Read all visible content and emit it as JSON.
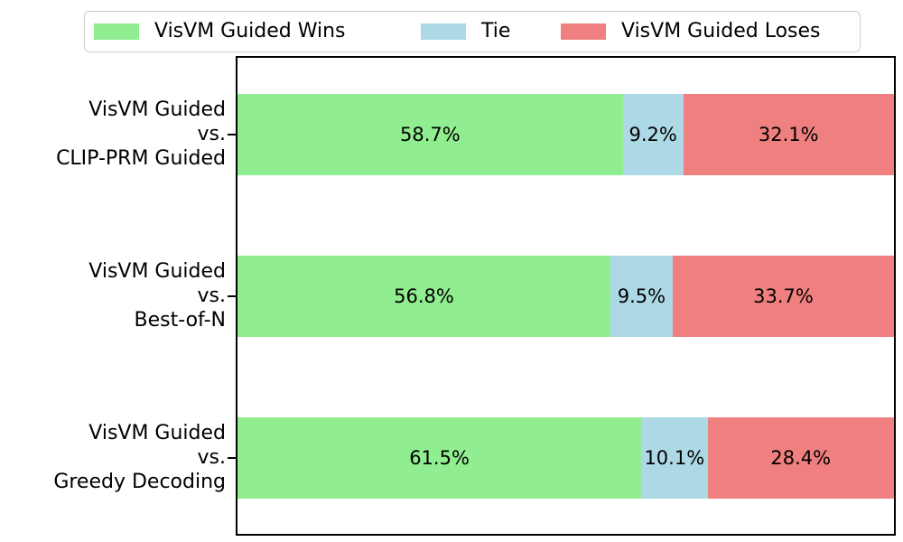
{
  "chart_data": {
    "type": "bar",
    "orientation": "horizontal_stacked",
    "title": "",
    "xlabel": "",
    "ylabel": "",
    "xlim": [
      0,
      100
    ],
    "grid": false,
    "legend_position": "top",
    "value_suffix": "%",
    "categories": [
      "VisVM Guided vs. CLIP-PRM Guided",
      "VisVM Guided vs. Best-of-N",
      "VisVM Guided vs. Greedy Decoding"
    ],
    "series": [
      {
        "name": "VisVM Guided Wins",
        "color": "#90EE90",
        "values": [
          58.7,
          56.8,
          61.5
        ]
      },
      {
        "name": "Tie",
        "color": "#ADD8E6",
        "values": [
          9.2,
          9.5,
          10.1
        ]
      },
      {
        "name": "VisVM Guided Loses",
        "color": "#F08080",
        "values": [
          32.1,
          33.7,
          28.4
        ]
      }
    ],
    "rows": [
      {
        "category_lines": [
          "VisVM Guided",
          "vs.",
          "CLIP-PRM Guided"
        ],
        "segments": [
          {
            "series": "VisVM Guided Wins",
            "value": 58.7,
            "label": "58.7%",
            "color": "#90EE90"
          },
          {
            "series": "Tie",
            "value": 9.2,
            "label": "9.2%",
            "color": "#ADD8E6"
          },
          {
            "series": "VisVM Guided Loses",
            "value": 32.1,
            "label": "32.1%",
            "color": "#F08080"
          }
        ]
      },
      {
        "category_lines": [
          "VisVM Guided",
          "vs.",
          "Best-of-N"
        ],
        "segments": [
          {
            "series": "VisVM Guided Wins",
            "value": 56.8,
            "label": "56.8%",
            "color": "#90EE90"
          },
          {
            "series": "Tie",
            "value": 9.5,
            "label": "9.5%",
            "color": "#ADD8E6"
          },
          {
            "series": "VisVM Guided Loses",
            "value": 33.7,
            "label": "33.7%",
            "color": "#F08080"
          }
        ]
      },
      {
        "category_lines": [
          "VisVM Guided",
          "vs.",
          "Greedy Decoding"
        ],
        "segments": [
          {
            "series": "VisVM Guided Wins",
            "value": 61.5,
            "label": "61.5%",
            "color": "#90EE90"
          },
          {
            "series": "Tie",
            "value": 10.1,
            "label": "10.1%",
            "color": "#ADD8E6"
          },
          {
            "series": "VisVM Guided Loses",
            "value": 28.4,
            "label": "28.4%",
            "color": "#F08080"
          }
        ]
      }
    ]
  },
  "legend": {
    "items": [
      {
        "label": "VisVM Guided Wins",
        "color": "#90EE90"
      },
      {
        "label": "Tie",
        "color": "#ADD8E6"
      },
      {
        "label": "VisVM Guided Loses",
        "color": "#F08080"
      }
    ]
  },
  "style": {
    "background": "#ffffff",
    "axis_color": "#000000",
    "text_color": "#000000",
    "legend_border": "#cccccc"
  }
}
